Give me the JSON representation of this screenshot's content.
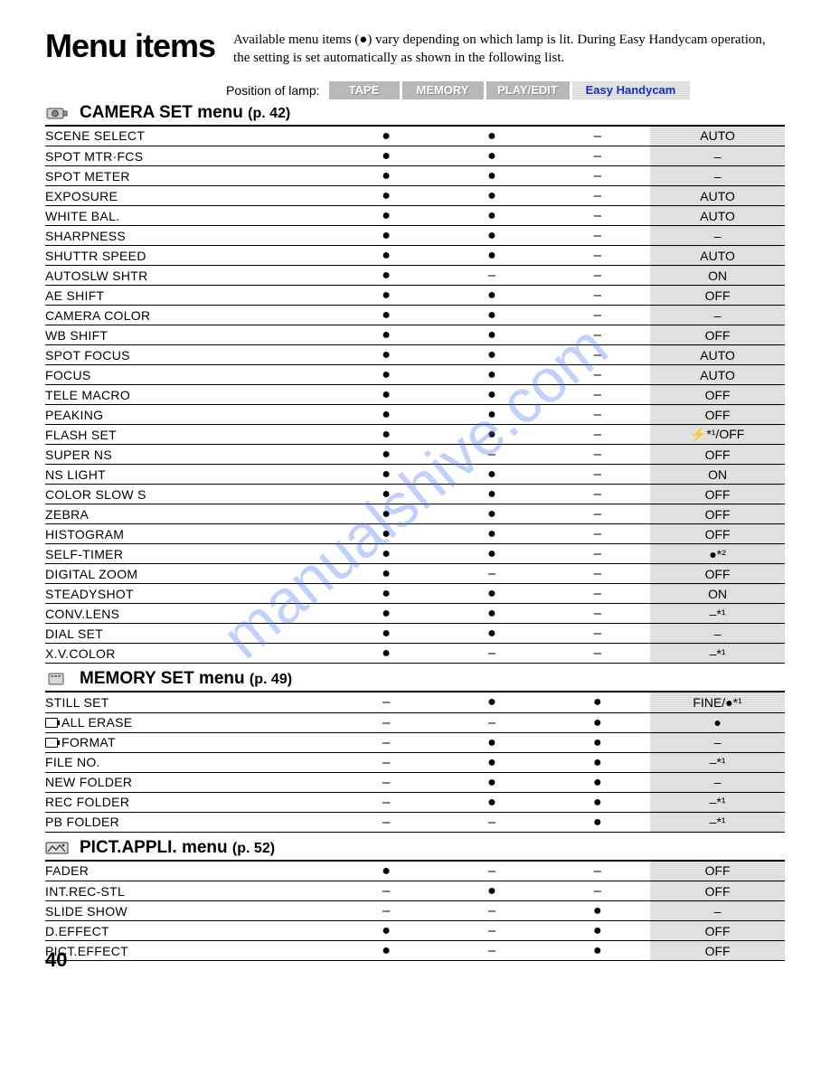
{
  "title": "Menu items",
  "intro": "Available menu items (●) vary depending on which lamp is lit. During Easy Handycam operation, the setting is set automatically as shown in the following list.",
  "lamp_label": "Position of lamp:",
  "headers": {
    "tape": {
      "label": "TAPE",
      "width": 78
    },
    "memory": {
      "label": "MEMORY",
      "width": 90
    },
    "play": {
      "label": "PLAY/EDIT",
      "width": 92
    },
    "easy": {
      "label": "Easy Handycam",
      "width": 130
    }
  },
  "page_number": "40",
  "watermark": "manualshive.com",
  "sections": [
    {
      "icon": "camera-icon",
      "title": "CAMERA SET menu ",
      "page": "(p. 42)",
      "rows": [
        {
          "item": "SCENE SELECT",
          "c": [
            "●",
            "●",
            "–"
          ],
          "easy": "AUTO"
        },
        {
          "item": "SPOT MTR·FCS",
          "c": [
            "●",
            "●",
            "–"
          ],
          "easy": "–"
        },
        {
          "item": "SPOT METER",
          "c": [
            "●",
            "●",
            "–"
          ],
          "easy": "–"
        },
        {
          "item": "EXPOSURE",
          "c": [
            "●",
            "●",
            "–"
          ],
          "easy": "AUTO"
        },
        {
          "item": "WHITE BAL.",
          "c": [
            "●",
            "●",
            "–"
          ],
          "easy": "AUTO"
        },
        {
          "item": "SHARPNESS",
          "c": [
            "●",
            "●",
            "–"
          ],
          "easy": "–"
        },
        {
          "item": "SHUTTR SPEED",
          "c": [
            "●",
            "●",
            "–"
          ],
          "easy": "AUTO"
        },
        {
          "item": "AUTOSLW SHTR",
          "c": [
            "●",
            "–",
            "–"
          ],
          "easy": "ON"
        },
        {
          "item": "AE SHIFT",
          "c": [
            "●",
            "●",
            "–"
          ],
          "easy": "OFF"
        },
        {
          "item": "CAMERA COLOR",
          "c": [
            "●",
            "●",
            "–"
          ],
          "easy": "–"
        },
        {
          "item": "WB SHIFT",
          "c": [
            "●",
            "●",
            "–"
          ],
          "easy": "OFF"
        },
        {
          "item": "SPOT FOCUS",
          "c": [
            "●",
            "●",
            "–"
          ],
          "easy": "AUTO"
        },
        {
          "item": "FOCUS",
          "c": [
            "●",
            "●",
            "–"
          ],
          "easy": "AUTO"
        },
        {
          "item": "TELE MACRO",
          "c": [
            "●",
            "●",
            "–"
          ],
          "easy": "OFF"
        },
        {
          "item": "PEAKING",
          "c": [
            "●",
            "●",
            "–"
          ],
          "easy": "OFF"
        },
        {
          "item": "FLASH SET",
          "c": [
            "●",
            "●",
            "–"
          ],
          "easy": "⚡*¹/OFF"
        },
        {
          "item": "SUPER NS",
          "c": [
            "●",
            "–",
            "–"
          ],
          "easy": "OFF"
        },
        {
          "item": "NS LIGHT",
          "c": [
            "●",
            "●",
            "–"
          ],
          "easy": "ON"
        },
        {
          "item": "COLOR SLOW S",
          "c": [
            "●",
            "●",
            "–"
          ],
          "easy": "OFF"
        },
        {
          "item": "ZEBRA",
          "c": [
            "●",
            "●",
            "–"
          ],
          "easy": "OFF"
        },
        {
          "item": "HISTOGRAM",
          "c": [
            "●",
            "●",
            "–"
          ],
          "easy": "OFF"
        },
        {
          "item": "SELF-TIMER",
          "c": [
            "●",
            "●",
            "–"
          ],
          "easy": "●*²"
        },
        {
          "item": "DIGITAL ZOOM",
          "c": [
            "●",
            "–",
            "–"
          ],
          "easy": "OFF"
        },
        {
          "item": "STEADYSHOT",
          "c": [
            "●",
            "●",
            "–"
          ],
          "easy": "ON"
        },
        {
          "item": "CONV.LENS",
          "c": [
            "●",
            "●",
            "–"
          ],
          "easy": "–*¹"
        },
        {
          "item": "DIAL SET",
          "c": [
            "●",
            "●",
            "–"
          ],
          "easy": "–"
        },
        {
          "item": "X.V.COLOR",
          "c": [
            "●",
            "–",
            "–"
          ],
          "easy": "–*¹"
        }
      ]
    },
    {
      "icon": "memory-icon",
      "title": "MEMORY SET menu ",
      "page": "(p. 49)",
      "rows": [
        {
          "item": "STILL SET",
          "c": [
            "–",
            "●",
            "●"
          ],
          "easy": "FINE/●*¹"
        },
        {
          "item": "ALL ERASE",
          "prefix_icon": true,
          "c": [
            "–",
            "–",
            "●"
          ],
          "easy": "●"
        },
        {
          "item": "FORMAT",
          "prefix_icon": true,
          "c": [
            "–",
            "●",
            "●"
          ],
          "easy": "–"
        },
        {
          "item": "FILE NO.",
          "c": [
            "–",
            "●",
            "●"
          ],
          "easy": "–*¹"
        },
        {
          "item": "NEW FOLDER",
          "c": [
            "–",
            "●",
            "●"
          ],
          "easy": "–"
        },
        {
          "item": "REC FOLDER",
          "c": [
            "–",
            "●",
            "●"
          ],
          "easy": "–*¹"
        },
        {
          "item": "PB FOLDER",
          "c": [
            "–",
            "–",
            "●"
          ],
          "easy": "–*¹"
        }
      ]
    },
    {
      "icon": "pict-icon",
      "title": "PICT.APPLI. menu ",
      "page": "(p. 52)",
      "rows": [
        {
          "item": "FADER",
          "c": [
            "●",
            "–",
            "–"
          ],
          "easy": "OFF"
        },
        {
          "item": "INT.REC-STL",
          "c": [
            "–",
            "●",
            "–"
          ],
          "easy": "OFF"
        },
        {
          "item": "SLIDE SHOW",
          "c": [
            "–",
            "–",
            "●"
          ],
          "easy": "–"
        },
        {
          "item": "D.EFFECT",
          "c": [
            "●",
            "–",
            "●"
          ],
          "easy": "OFF"
        },
        {
          "item": "PICT.EFFECT",
          "c": [
            "●",
            "–",
            "●"
          ],
          "easy": "OFF"
        }
      ]
    }
  ]
}
